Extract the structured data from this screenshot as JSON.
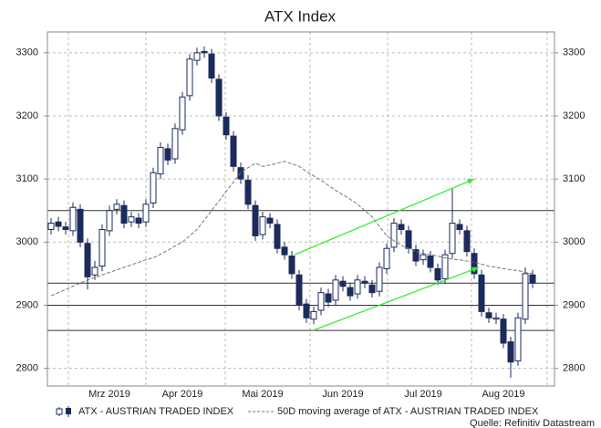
{
  "chart_data": {
    "type": "candlestick",
    "title": "ATX Index",
    "categories": [
      null,
      null,
      null,
      null,
      null,
      null,
      null,
      null,
      "Mrz 2019",
      null,
      null,
      null,
      null,
      null,
      null,
      null,
      null,
      null,
      "Apr 2019",
      null,
      null,
      null,
      null,
      null,
      null,
      null,
      null,
      null,
      null,
      "Mai 2019",
      null,
      null,
      null,
      null,
      null,
      null,
      null,
      null,
      null,
      null,
      "Jun 2019",
      null,
      null,
      null,
      null,
      null,
      null,
      null,
      null,
      null,
      null,
      "Jul 2019",
      null,
      null,
      null,
      null,
      null,
      null,
      null,
      null,
      null,
      null,
      "Aug 2019",
      null,
      null,
      null,
      null
    ],
    "series": [
      {
        "name": "ATX - AUSTRIAN TRADED INDEX",
        "color": "#1b2b5c",
        "open": [
          3020,
          3032,
          3024,
          3018,
          3052,
          2998,
          2948,
          2962,
          3018,
          3052,
          3058,
          3032,
          3038,
          3032,
          3062,
          3108,
          3148,
          3132,
          3178,
          3232,
          3288,
          3302,
          3298,
          3258,
          3198,
          3168,
          3118,
          3098,
          3058,
          3012,
          3038,
          3028,
          2992,
          2978,
          2948,
          2902,
          2878,
          2892,
          2918,
          2908,
          2938,
          2928,
          2918,
          2938,
          2932,
          2922,
          2958,
          2992,
          3028,
          3018,
          2988,
          2972,
          2978,
          2958,
          2942,
          2982,
          3028,
          3018,
          2982,
          2948,
          2888,
          2878,
          2878,
          2842,
          2812,
          2878,
          2948
        ],
        "high": [
          3038,
          3040,
          3032,
          3063,
          3060,
          3006,
          2970,
          3028,
          3058,
          3068,
          3066,
          3048,
          3046,
          3068,
          3118,
          3158,
          3156,
          3188,
          3238,
          3298,
          3308,
          3310,
          3306,
          3266,
          3206,
          3176,
          3126,
          3106,
          3066,
          3048,
          3046,
          3036,
          3000,
          2986,
          2956,
          2910,
          2898,
          2928,
          2926,
          2948,
          2946,
          2936,
          2948,
          2946,
          2940,
          2968,
          2998,
          3038,
          3036,
          3026,
          2996,
          2988,
          2986,
          2966,
          2988,
          3085,
          3036,
          3026,
          2990,
          2956,
          2896,
          2888,
          2886,
          2850,
          2888,
          2960,
          2956
        ],
        "low": [
          3012,
          3017,
          3012,
          3010,
          2992,
          2925,
          2940,
          2954,
          3010,
          3044,
          3022,
          3024,
          3022,
          3024,
          3054,
          3100,
          3122,
          3124,
          3170,
          3224,
          3280,
          3292,
          3252,
          3192,
          3162,
          3112,
          3092,
          3052,
          3002,
          3004,
          3022,
          2982,
          2972,
          2942,
          2892,
          2872,
          2870,
          2884,
          2897,
          2900,
          2922,
          2907,
          2910,
          2927,
          2912,
          2914,
          2950,
          2984,
          3012,
          2982,
          2962,
          2964,
          2952,
          2932,
          2934,
          2974,
          3012,
          2977,
          2942,
          2882,
          2872,
          2870,
          2832,
          2785,
          2804,
          2870,
          2927
        ],
        "close": [
          3030,
          3025,
          3020,
          3055,
          3000,
          2945,
          2960,
          3020,
          3050,
          3060,
          3030,
          3040,
          3030,
          3060,
          3110,
          3150,
          3130,
          3180,
          3230,
          3290,
          3300,
          3300,
          3260,
          3200,
          3170,
          3120,
          3100,
          3060,
          3010,
          3040,
          3030,
          2990,
          2980,
          2950,
          2900,
          2880,
          2890,
          2920,
          2905,
          2940,
          2930,
          2915,
          2940,
          2935,
          2920,
          2960,
          2990,
          3030,
          3020,
          2990,
          2970,
          2980,
          2960,
          2940,
          2980,
          3030,
          3020,
          2985,
          2950,
          2890,
          2880,
          2880,
          2840,
          2810,
          2880,
          2950,
          2935
        ]
      },
      {
        "name": "50D moving average of ATX - AUSTRIAN TRADED INDEX",
        "color": "#777777",
        "values": [
          2915,
          2920,
          2925,
          2930,
          2935,
          2940,
          2944,
          2948,
          2952,
          2956,
          2960,
          2964,
          2968,
          2972,
          2975,
          2981,
          2987,
          2994,
          3000,
          3010,
          3020,
          3035,
          3050,
          3065,
          3080,
          3095,
          3110,
          3118,
          3125,
          3120,
          3122,
          3125,
          3128,
          3124,
          3120,
          3112,
          3105,
          3098,
          3090,
          3082,
          3075,
          3068,
          3060,
          3050,
          3040,
          3025,
          3010,
          3002,
          2995,
          2990,
          2985,
          2982,
          2980,
          2978,
          2975,
          2973,
          2972,
          2970,
          2968,
          2965,
          2962,
          2960,
          2958,
          2956,
          2955,
          2952,
          2950
        ]
      }
    ],
    "levels": [
      3050,
      2935,
      2900,
      2860
    ],
    "trend_lines": [
      {
        "color": "#33ee33",
        "values": [
          2980,
          3100
        ]
      },
      {
        "color": "#33ee33",
        "values": [
          2860,
          2960
        ]
      }
    ],
    "ylim": [
      2772,
      3333
    ],
    "yticks": [
      2800,
      2900,
      3000,
      3100,
      3200,
      3300
    ],
    "grid": true,
    "source": "Quelle: Refinitiv Datastream"
  }
}
